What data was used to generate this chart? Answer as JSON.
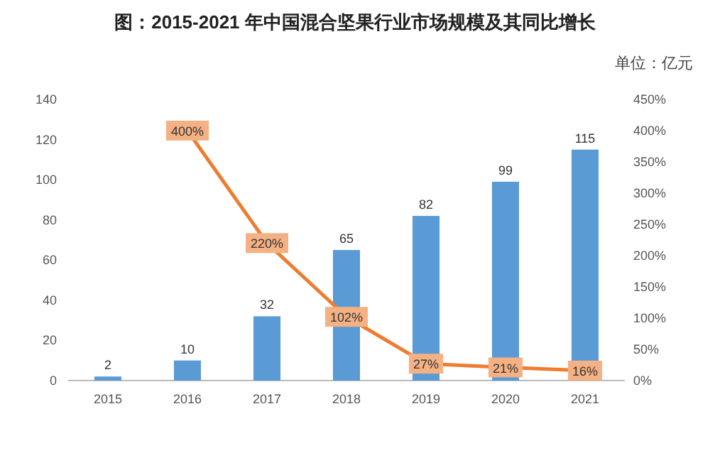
{
  "chart_data": {
    "type": "bar",
    "title": "图：2015-2021 年中国混合坚果行业市场规模及其同比增长",
    "annotations": [
      "单位：亿元"
    ],
    "categories": [
      "2015",
      "2016",
      "2017",
      "2018",
      "2019",
      "2020",
      "2021"
    ],
    "series": [
      {
        "color": "#5b9bd5",
        "values": [
          2,
          10,
          32,
          65,
          82,
          99,
          115
        ],
        "value_labels": [
          "2",
          "10",
          "32",
          "65",
          "82",
          "99",
          "115"
        ]
      },
      {
        "type": "line",
        "axis": "y2",
        "marker": "square",
        "color": "#ed7d31",
        "values": [
          null,
          400,
          220,
          102,
          27,
          21,
          16
        ],
        "value_labels": [
          null,
          "400%",
          "220%",
          "102%",
          "27%",
          "21%",
          "16%"
        ]
      }
    ],
    "ylim": [
      0,
      140
    ],
    "yticks": [
      0,
      20,
      40,
      60,
      80,
      100,
      120,
      140
    ],
    "y2lim": [
      0,
      450
    ],
    "y2ticks": [
      {
        "value": 0,
        "label": "0%"
      },
      {
        "value": 50,
        "label": "50%"
      },
      {
        "value": 100,
        "label": "100%"
      },
      {
        "value": 150,
        "label": "150%"
      },
      {
        "value": 200,
        "label": "200%"
      },
      {
        "value": 250,
        "label": "250%"
      },
      {
        "value": 300,
        "label": "300%"
      },
      {
        "value": 350,
        "label": "350%"
      },
      {
        "value": 400,
        "label": "400%"
      },
      {
        "value": 450,
        "label": "450%"
      }
    ],
    "grid": false
  }
}
